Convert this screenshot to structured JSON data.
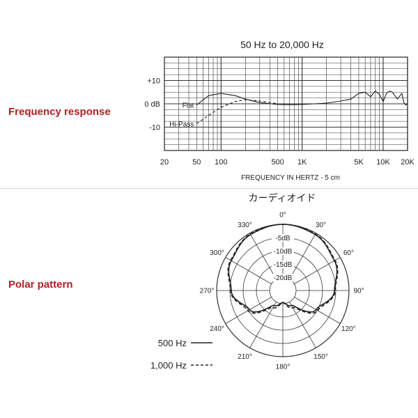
{
  "sections": {
    "frequency_label": "Frequency response",
    "polar_label": "Polar pattern"
  },
  "chart_data": [
    {
      "type": "line",
      "title": "50 Hz to 20,000 Hz",
      "xlabel": "FREQUENCY IN HERTZ - 5 cm",
      "ylabel": "",
      "x_scale": "log",
      "xlim": [
        20,
        20000
      ],
      "ylim": [
        -20,
        20
      ],
      "x_tick_labels": [
        {
          "label": "20",
          "value": 20
        },
        {
          "label": "50",
          "value": 50
        },
        {
          "label": "100",
          "value": 100
        },
        {
          "label": "500",
          "value": 500
        },
        {
          "label": "1K",
          "value": 1000
        },
        {
          "label": "5K",
          "value": 5000
        },
        {
          "label": "10K",
          "value": 10000
        },
        {
          "label": "20K",
          "value": 20000
        }
      ],
      "y_tick_labels": [
        {
          "label": "+10",
          "value": 10
        },
        {
          "label": "0 dB",
          "value": 0
        },
        {
          "label": "-10",
          "value": -10
        }
      ],
      "grid": true,
      "series": [
        {
          "name": "Flat",
          "style": "solid",
          "color": "#222222",
          "x": [
            50,
            70,
            100,
            150,
            200,
            300,
            500,
            700,
            1000,
            2000,
            3000,
            4000,
            5000,
            6000,
            7000,
            8000,
            9000,
            10000,
            11000,
            12000,
            13000,
            15000,
            17000,
            18000,
            19000,
            20000
          ],
          "y": [
            -0.5,
            3.5,
            4.5,
            3.5,
            2.0,
            0.5,
            -0.3,
            -0.4,
            -0.3,
            0.3,
            1.2,
            2.0,
            4.5,
            5.0,
            3.0,
            5.5,
            4.0,
            1.0,
            4.5,
            5.5,
            5.0,
            2.0,
            4.5,
            0.5,
            -0.5,
            0.0
          ]
        },
        {
          "name": "Hi-Pass",
          "style": "dashed",
          "color": "#222222",
          "x": [
            50,
            70,
            100,
            150,
            200,
            300,
            500
          ],
          "y": [
            -8.5,
            -5.0,
            -1.5,
            1.0,
            1.8,
            1.2,
            0.0
          ]
        }
      ]
    },
    {
      "type": "polar",
      "title": "カーディオイド",
      "r_range_db": [
        -25,
        0
      ],
      "ring_labels": [
        {
          "label": "-5dB",
          "value": -5
        },
        {
          "label": "-10dB",
          "value": -10
        },
        {
          "label": "-15dB",
          "value": -15
        },
        {
          "label": "-20dB",
          "value": -20
        }
      ],
      "angle_labels": [
        {
          "label": "0°",
          "angle": 0
        },
        {
          "label": "30°",
          "angle": 30
        },
        {
          "label": "60°",
          "angle": 60
        },
        {
          "label": "90°",
          "angle": 90
        },
        {
          "label": "120°",
          "angle": 120
        },
        {
          "label": "150°",
          "angle": 150
        },
        {
          "label": "180°",
          "angle": 180
        },
        {
          "label": "210°",
          "angle": 210
        },
        {
          "label": "240°",
          "angle": 240
        },
        {
          "label": "270°",
          "angle": 270
        },
        {
          "label": "300°",
          "angle": 300
        },
        {
          "label": "330°",
          "angle": 330
        }
      ],
      "series": [
        {
          "name": "500 Hz",
          "style": "solid",
          "color": "#222222",
          "angles": [
            0,
            30,
            60,
            90,
            120,
            150,
            180,
            210,
            240,
            270,
            300,
            330,
            360
          ],
          "db": [
            0,
            -0.6,
            -2.5,
            -5.5,
            -10.5,
            -18.5,
            -20.5,
            -18.5,
            -10.5,
            -5.5,
            -2.5,
            -0.6,
            0
          ]
        },
        {
          "name": "1,000 Hz",
          "style": "dashed",
          "color": "#222222",
          "angles": [
            0,
            30,
            60,
            90,
            120,
            150,
            180,
            210,
            240,
            270,
            300,
            330,
            360
          ],
          "db": [
            0,
            -0.4,
            -2.2,
            -5.2,
            -9.8,
            -17.5,
            -20.5,
            -17.5,
            -9.8,
            -5.2,
            -2.2,
            -0.4,
            0
          ]
        }
      ]
    }
  ]
}
